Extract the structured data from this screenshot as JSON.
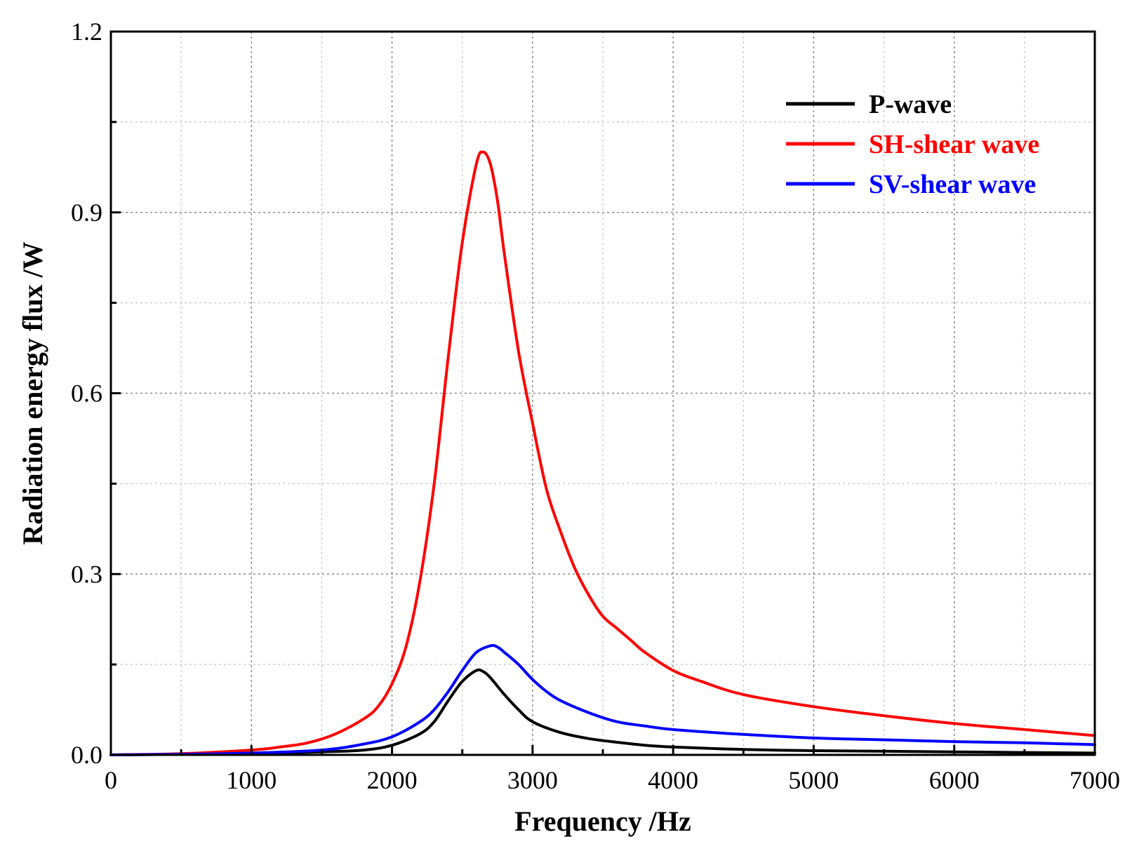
{
  "chart_data": {
    "type": "line",
    "title": "",
    "xlabel": "Frequency /Hz",
    "ylabel": "Radiation energy flux /W",
    "xlim": [
      0,
      7000
    ],
    "ylim": [
      0,
      1.2
    ],
    "x_major_ticks": [
      0,
      1000,
      2000,
      3000,
      4000,
      5000,
      6000,
      7000
    ],
    "x_major_tick_labels": [
      "0",
      "1000",
      "2000",
      "3000",
      "4000",
      "5000",
      "6000",
      "7000"
    ],
    "x_minor_ticks": [
      500,
      1500,
      2500,
      3500,
      4500,
      5500,
      6500
    ],
    "y_major_ticks": [
      0,
      0.3,
      0.6,
      0.9,
      1.2
    ],
    "y_major_tick_labels": [
      "0.0",
      "0.3",
      "0.6",
      "0.9",
      "1.2"
    ],
    "y_minor_ticks": [
      0.15,
      0.45,
      0.75,
      1.05
    ],
    "grid": true,
    "legend_position": "top-right",
    "series": [
      {
        "name": "P-wave",
        "color": "#000000",
        "points": [
          [
            0,
            0
          ],
          [
            500,
            0.001
          ],
          [
            1000,
            0.002
          ],
          [
            1500,
            0.005
          ],
          [
            1800,
            0.008
          ],
          [
            2000,
            0.016
          ],
          [
            2200,
            0.035
          ],
          [
            2300,
            0.055
          ],
          [
            2400,
            0.09
          ],
          [
            2500,
            0.122
          ],
          [
            2600,
            0.14
          ],
          [
            2650,
            0.138
          ],
          [
            2700,
            0.128
          ],
          [
            2800,
            0.1
          ],
          [
            2900,
            0.075
          ],
          [
            3000,
            0.055
          ],
          [
            3200,
            0.037
          ],
          [
            3400,
            0.027
          ],
          [
            3600,
            0.021
          ],
          [
            3800,
            0.016
          ],
          [
            4000,
            0.013
          ],
          [
            4500,
            0.009
          ],
          [
            5000,
            0.007
          ],
          [
            5500,
            0.006
          ],
          [
            6000,
            0.005
          ],
          [
            6500,
            0.004
          ],
          [
            7000,
            0.003
          ]
        ]
      },
      {
        "name": "SH-shear wave",
        "color": "#ff0000",
        "points": [
          [
            0,
            0
          ],
          [
            500,
            0.002
          ],
          [
            1000,
            0.008
          ],
          [
            1200,
            0.013
          ],
          [
            1400,
            0.02
          ],
          [
            1600,
            0.035
          ],
          [
            1800,
            0.06
          ],
          [
            1900,
            0.08
          ],
          [
            2000,
            0.118
          ],
          [
            2100,
            0.18
          ],
          [
            2200,
            0.29
          ],
          [
            2300,
            0.45
          ],
          [
            2400,
            0.66
          ],
          [
            2500,
            0.85
          ],
          [
            2600,
            0.98
          ],
          [
            2650,
            1.0
          ],
          [
            2700,
            0.98
          ],
          [
            2750,
            0.92
          ],
          [
            2800,
            0.83
          ],
          [
            2900,
            0.67
          ],
          [
            3000,
            0.55
          ],
          [
            3100,
            0.44
          ],
          [
            3200,
            0.37
          ],
          [
            3300,
            0.31
          ],
          [
            3400,
            0.265
          ],
          [
            3500,
            0.23
          ],
          [
            3600,
            0.21
          ],
          [
            3700,
            0.19
          ],
          [
            3800,
            0.17
          ],
          [
            4000,
            0.14
          ],
          [
            4200,
            0.122
          ],
          [
            4500,
            0.1
          ],
          [
            5000,
            0.08
          ],
          [
            5500,
            0.065
          ],
          [
            6000,
            0.052
          ],
          [
            6500,
            0.042
          ],
          [
            7000,
            0.032
          ]
        ]
      },
      {
        "name": "SV-shear wave",
        "color": "#0000ff",
        "points": [
          [
            0,
            0
          ],
          [
            500,
            0.001
          ],
          [
            1000,
            0.003
          ],
          [
            1500,
            0.008
          ],
          [
            1800,
            0.018
          ],
          [
            2000,
            0.03
          ],
          [
            2200,
            0.055
          ],
          [
            2300,
            0.075
          ],
          [
            2400,
            0.105
          ],
          [
            2500,
            0.14
          ],
          [
            2600,
            0.17
          ],
          [
            2700,
            0.181
          ],
          [
            2750,
            0.179
          ],
          [
            2800,
            0.17
          ],
          [
            2900,
            0.15
          ],
          [
            3000,
            0.125
          ],
          [
            3100,
            0.105
          ],
          [
            3200,
            0.09
          ],
          [
            3400,
            0.07
          ],
          [
            3600,
            0.055
          ],
          [
            3800,
            0.048
          ],
          [
            4000,
            0.042
          ],
          [
            4500,
            0.034
          ],
          [
            5000,
            0.028
          ],
          [
            5500,
            0.025
          ],
          [
            6000,
            0.022
          ],
          [
            6500,
            0.02
          ],
          [
            7000,
            0.017
          ]
        ]
      }
    ]
  }
}
